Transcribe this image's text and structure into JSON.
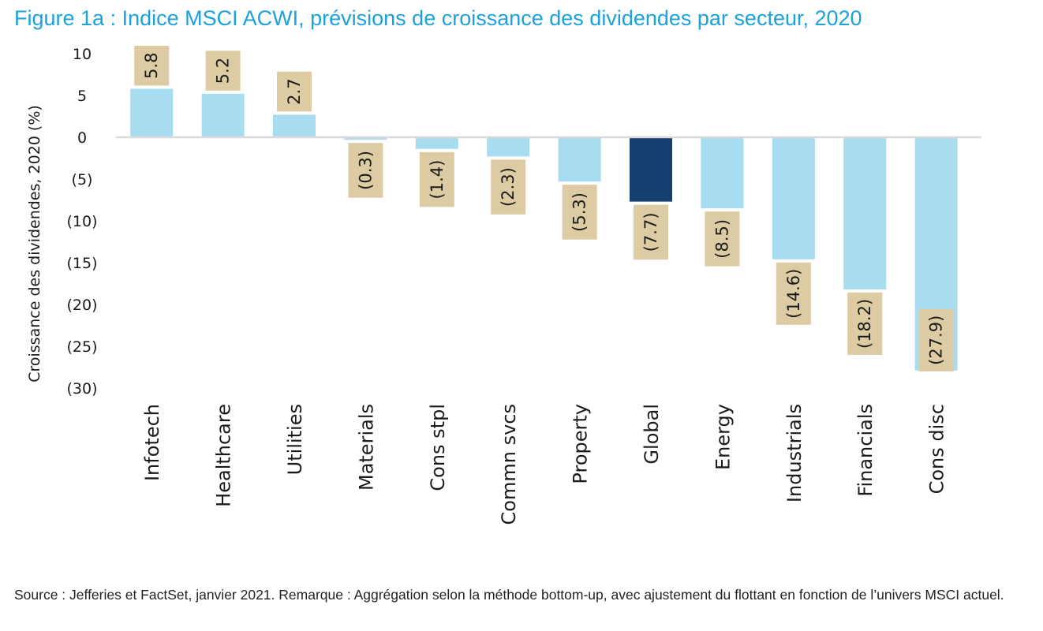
{
  "title": "Figure 1a : Indice MSCI ACWI, prévisions de croissance des dividendes par secteur, 2020",
  "footer": "Source : Jefferies et FactSet, janvier 2021. Remarque : Aggrégation selon la méthode bottom-up, avec ajustement du flottant en fonction de l’univers MSCI actuel.",
  "colors": {
    "bar": "#a8dcf0",
    "highlight": "#143f6e",
    "label_box": "#dccba3",
    "axis": "#d9d9d9",
    "text": "#1a1a1a",
    "title": "#1ba1dc"
  },
  "chart_data": {
    "type": "bar",
    "title": "Figure 1a : Indice MSCI ACWI, prévisions de croissance des dividendes par secteur, 2020",
    "xlabel": "",
    "ylabel": "Croissance des dividendes, 2020 (%)",
    "ylim": [
      -30,
      10
    ],
    "yticks": [
      10,
      5,
      0,
      -5,
      -10,
      -15,
      -20,
      -25,
      -30
    ],
    "ytick_labels": [
      "10",
      "5",
      "0",
      "(5)",
      "(10)",
      "(15)",
      "(20)",
      "(25)",
      "(30)"
    ],
    "categories": [
      "Infotech",
      "Healthcare",
      "Utilities",
      "Materials",
      "Cons stpl",
      "Commn svcs",
      "Property",
      "Global",
      "Energy",
      "Industrials",
      "Financials",
      "Cons disc"
    ],
    "values": [
      5.8,
      5.2,
      2.7,
      -0.3,
      -1.4,
      -2.3,
      -5.3,
      -7.7,
      -8.5,
      -14.6,
      -18.2,
      -27.9
    ],
    "data_labels": [
      "5.8",
      "5.2",
      "2.7",
      "(0.3)",
      "(1.4)",
      "(2.3)",
      "(5.3)",
      "(7.7)",
      "(8.5)",
      "(14.6)",
      "(18.2)",
      "(27.9)"
    ],
    "highlight": [
      "Global"
    ],
    "grid": false,
    "legend": "none"
  }
}
